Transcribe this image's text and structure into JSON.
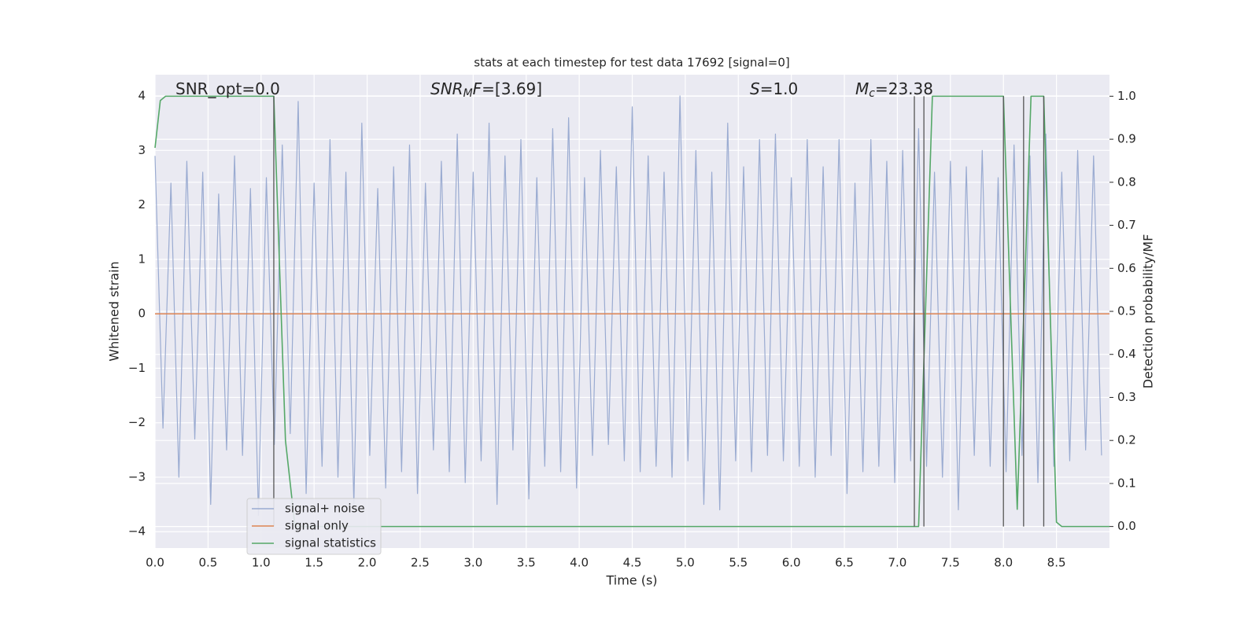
{
  "chart_data": {
    "type": "line",
    "title": "stats at each timestep for test data 17692 [signal=0]",
    "x_label": "Time (s)",
    "y_label": "Whitened strain",
    "y2_label": "Detection probability/MF",
    "annotations": [
      [
        {
          "text": "SNR_opt=0.0"
        }
      ],
      [
        {
          "text": "SNR",
          "italic": true
        },
        {
          "text": "M",
          "italic": true,
          "sub": true
        },
        {
          "text": "F",
          "italic": true
        },
        {
          "text": "=[3.69]"
        }
      ],
      [
        {
          "text": "S",
          "italic": true
        },
        {
          "text": "=1.0"
        }
      ],
      [
        {
          "text": "M",
          "italic": true
        },
        {
          "text": "c",
          "italic": true,
          "sub": true
        },
        {
          "text": "=23.38"
        }
      ]
    ],
    "xlim": [
      0,
      9.0
    ],
    "ylim": [
      -4.3,
      4.39
    ],
    "y2lim": [
      -0.05,
      1.05
    ],
    "xticks": [
      {
        "value": 0,
        "label": "0.0"
      },
      0.5,
      {
        "value": 1,
        "label": "1.0"
      },
      1.5,
      {
        "value": 2,
        "label": "2.0"
      },
      2.5,
      {
        "value": 3,
        "label": "3.0"
      },
      3.5,
      {
        "value": 4,
        "label": "4.0"
      },
      4.5,
      {
        "value": 5,
        "label": "5.0"
      },
      5.5,
      {
        "value": 6,
        "label": "6.0"
      },
      6.5,
      {
        "value": 7,
        "label": "7.0"
      },
      7.5,
      {
        "value": 8,
        "label": "8.0"
      },
      8.5
    ],
    "yticks": [
      {
        "value": -4,
        "label": "−4"
      },
      {
        "value": -3,
        "label": "−3"
      },
      {
        "value": -2,
        "label": "−2"
      },
      {
        "value": -1,
        "label": "−1"
      },
      0,
      1,
      2,
      3,
      4
    ],
    "y2ticks": [
      {
        "value": 0,
        "label": "0.0"
      },
      0.1,
      0.2,
      0.3,
      0.4,
      0.5,
      0.6,
      0.7,
      0.8,
      0.9,
      {
        "value": 1,
        "label": "1.0"
      }
    ],
    "grid": true,
    "legend": "lower left",
    "series": [
      {
        "name": "signal+ noise",
        "color": "#9aabd1",
        "x": [
          0,
          0.075,
          0.15,
          0.225,
          0.3,
          0.375,
          0.45,
          0.525,
          0.6,
          0.675,
          0.75,
          0.825,
          0.9,
          0.975,
          1.05,
          1.125,
          1.2,
          1.275,
          1.35,
          1.425,
          1.5,
          1.575,
          1.65,
          1.725,
          1.8,
          1.875,
          1.95,
          2.025,
          2.1,
          2.175,
          2.25,
          2.325,
          2.4,
          2.475,
          2.55,
          2.625,
          2.7,
          2.775,
          2.85,
          2.925,
          3,
          3.075,
          3.15,
          3.225,
          3.3,
          3.375,
          3.45,
          3.525,
          3.6,
          3.675,
          3.75,
          3.825,
          3.9,
          3.975,
          4.05,
          4.125,
          4.2,
          4.275,
          4.35,
          4.425,
          4.5,
          4.575,
          4.65,
          4.725,
          4.8,
          4.875,
          4.95,
          5.025,
          5.1,
          5.175,
          5.25,
          5.325,
          5.4,
          5.475,
          5.55,
          5.625,
          5.7,
          5.775,
          5.85,
          5.925,
          6,
          6.075,
          6.15,
          6.225,
          6.3,
          6.375,
          6.45,
          6.525,
          6.6,
          6.675,
          6.75,
          6.825,
          6.9,
          6.975,
          7.05,
          7.125,
          7.2,
          7.275,
          7.35,
          7.425,
          7.5,
          7.575,
          7.65,
          7.725,
          7.8,
          7.875,
          7.95,
          8.025,
          8.1,
          8.175,
          8.25,
          8.325,
          8.4,
          8.475,
          8.55,
          8.625,
          8.7,
          8.775,
          8.85,
          8.925
        ],
        "values": [
          2.9,
          -2.1,
          2.4,
          -3.0,
          2.8,
          -2.3,
          2.6,
          -3.5,
          2.2,
          -2.5,
          2.9,
          -2.6,
          2.3,
          -3.7,
          2.5,
          -2.4,
          3.1,
          -2.2,
          3.9,
          -3.3,
          2.4,
          -2.8,
          3.2,
          -3.0,
          2.6,
          -3.5,
          3.5,
          -2.6,
          2.3,
          -3.2,
          2.7,
          -2.9,
          3.1,
          -3.3,
          2.4,
          -2.5,
          2.8,
          -2.9,
          3.3,
          -3.1,
          2.6,
          -2.7,
          3.5,
          -3.5,
          2.9,
          -2.5,
          3.2,
          -3.4,
          2.5,
          -2.8,
          3.4,
          -2.9,
          3.6,
          -3.2,
          2.5,
          -2.6,
          3.0,
          -2.4,
          2.7,
          -2.7,
          3.8,
          -2.9,
          2.9,
          -2.8,
          2.6,
          -3.0,
          4.0,
          -2.7,
          3.0,
          -3.5,
          2.6,
          -3.6,
          3.5,
          -2.7,
          2.7,
          -2.9,
          3.2,
          -2.6,
          3.3,
          -2.7,
          2.5,
          -2.8,
          3.2,
          -3.0,
          2.7,
          -2.6,
          3.2,
          -3.3,
          2.4,
          -2.9,
          3.2,
          -2.8,
          2.8,
          -3.1,
          3.0,
          -2.7,
          3.4,
          -2.8,
          2.6,
          -3.0,
          2.8,
          -3.6,
          2.7,
          -2.6,
          3.0,
          -2.8,
          2.5,
          -2.9,
          3.1,
          -2.6,
          2.9,
          -3.1,
          3.3,
          -2.8,
          2.6,
          -2.7,
          3.0,
          -2.5,
          2.9,
          -2.6
        ]
      },
      {
        "name": "signal only",
        "color": "#dd8452",
        "x": [
          0,
          9.0
        ],
        "values": [
          0,
          0
        ]
      },
      {
        "name": "signal statistics",
        "color": "#55a868",
        "axis": "y2",
        "x": [
          0,
          0.05,
          0.1,
          1.12,
          1.23,
          1.32,
          7.2,
          7.33,
          8.0,
          8.13,
          8.26,
          8.38,
          8.5,
          8.55,
          9.0
        ],
        "values": [
          0.88,
          0.99,
          1.0,
          1.0,
          0.2,
          0.0,
          0.0,
          1.0,
          1.0,
          0.04,
          1.0,
          1.0,
          0.01,
          0.0,
          0.0
        ]
      }
    ],
    "vlines": {
      "color": "#555555",
      "x": [
        1.12,
        7.16,
        7.25,
        8.0,
        8.19,
        8.38
      ]
    }
  }
}
